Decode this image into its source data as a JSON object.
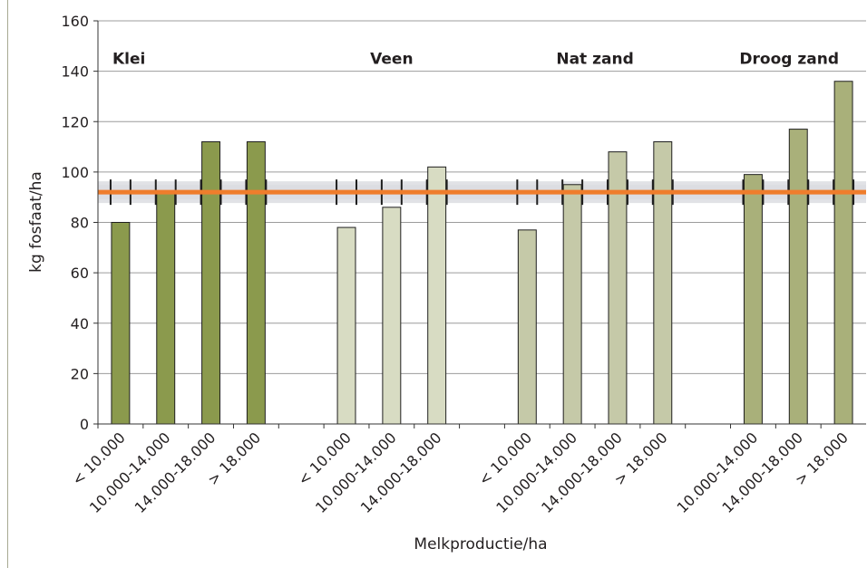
{
  "chart_data": {
    "type": "bar",
    "title": "",
    "xlabel": "Melkproductie/ha",
    "ylabel": "kg fosfaat/ha",
    "ylim": [
      0,
      160
    ],
    "yticks": [
      0,
      20,
      40,
      60,
      80,
      100,
      120,
      140,
      160
    ],
    "grid": true,
    "reference_line": {
      "value": 92,
      "color": "#ef7d2c"
    },
    "groups": [
      {
        "name": "Klei",
        "color": "#8b9a4d",
        "categories": [
          "< 10.000",
          "10.000-14.000",
          "14.000-18.000",
          "> 18.000"
        ],
        "values": [
          80,
          92,
          112,
          112
        ]
      },
      {
        "name": "Veen",
        "color": "#d8dcc3",
        "categories": [
          "< 10.000",
          "10.000-14.000",
          "14.000-18.000"
        ],
        "values": [
          78,
          86,
          102
        ]
      },
      {
        "name": "Nat zand",
        "color": "#c5c9a8",
        "categories": [
          "< 10.000",
          "10.000-14.000",
          "14.000-18.000",
          "> 18.000"
        ],
        "values": [
          77,
          95,
          108,
          112
        ]
      },
      {
        "name": "Droog zand",
        "color": "#a9b07a",
        "categories": [
          "10.000-14.000",
          "14.000-18.000",
          "> 18.000"
        ],
        "values": [
          99,
          117,
          136
        ]
      }
    ]
  }
}
